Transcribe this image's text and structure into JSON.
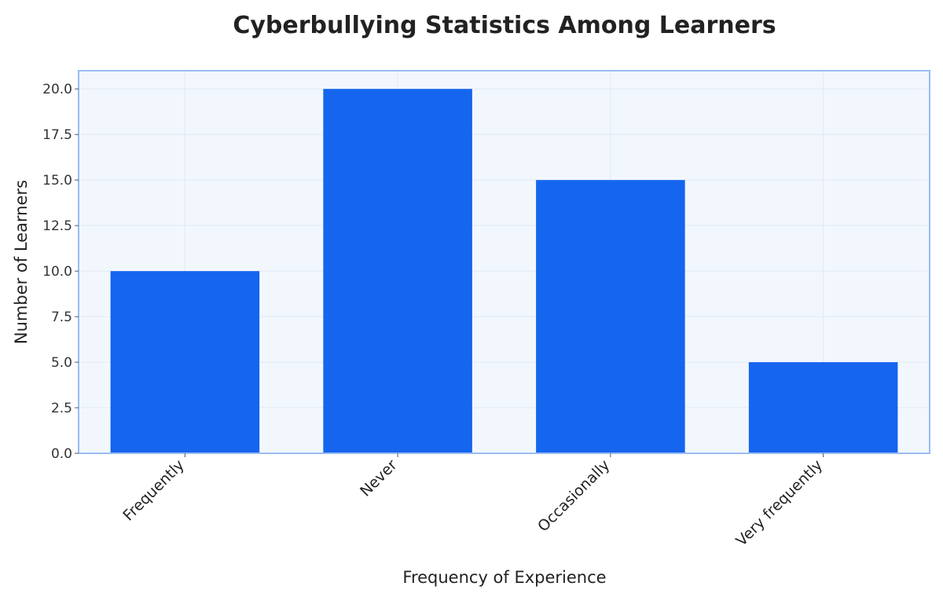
{
  "chart_data": {
    "type": "bar",
    "title": "Cyberbullying Statistics Among Learners",
    "xlabel": "Frequency of Experience",
    "ylabel": "Number of Learners",
    "categories": [
      "Frequently",
      "Never",
      "Occasionally",
      "Very frequently"
    ],
    "values": [
      10,
      20,
      15,
      5
    ],
    "ylim": [
      0,
      21
    ],
    "yticks": [
      "0.0",
      "2.5",
      "5.0",
      "7.5",
      "10.0",
      "12.5",
      "15.0",
      "17.5",
      "20.0"
    ],
    "grid": true,
    "legend": "none",
    "colors": {
      "bar": "#1565ee",
      "plot_background": "#f2f7fe",
      "plot_border": "#9bbcf2",
      "grid": "#e2e8f5"
    }
  }
}
